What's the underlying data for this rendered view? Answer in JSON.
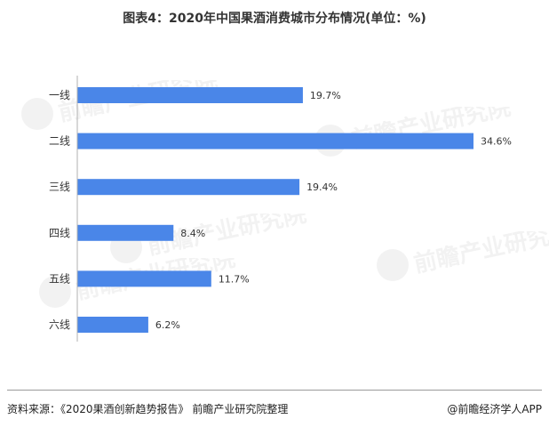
{
  "title": "图表4：2020年中国果酒消费城市分布情况(单位：%)",
  "footer": {
    "source": "资料来源：《2020果酒创新趋势报告》 前瞻产业研究院整理",
    "brand": "@前瞻经济学人APP"
  },
  "watermark_text": "前瞻产业研究院",
  "colors": {
    "bar": "#4a86e8",
    "axis": "#b0b0b0",
    "text": "#333333"
  },
  "chart_data": {
    "type": "bar",
    "orientation": "horizontal",
    "title": "图表4：2020年中国果酒消费城市分布情况(单位：%)",
    "xlabel": "",
    "ylabel": "",
    "categories": [
      "一线",
      "二线",
      "三线",
      "四线",
      "五线",
      "六线"
    ],
    "values": [
      19.7,
      34.6,
      19.4,
      8.4,
      11.7,
      6.2
    ],
    "value_labels": [
      "19.7%",
      "34.6%",
      "19.4%",
      "8.4%",
      "11.7%",
      "6.2%"
    ],
    "xlim": [
      0,
      34.6
    ],
    "grid": false,
    "legend": "none"
  }
}
